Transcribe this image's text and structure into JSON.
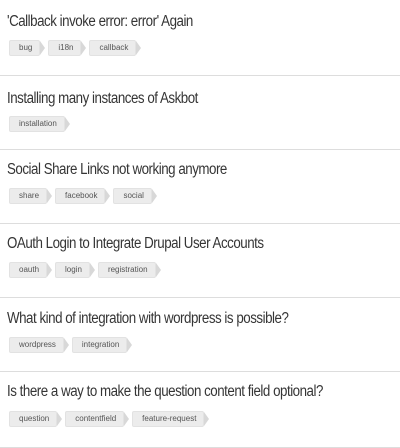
{
  "questions": [
    {
      "title": "'Callback invoke error: error' Again",
      "tags": [
        "bug",
        "i18n",
        "callback"
      ]
    },
    {
      "title": "Installing many instances of Askbot",
      "tags": [
        "installation"
      ]
    },
    {
      "title": "Social Share Links not working anymore",
      "tags": [
        "share",
        "facebook",
        "social"
      ]
    },
    {
      "title": "OAuth Login to Integrate Drupal User Accounts",
      "tags": [
        "oauth",
        "login",
        "registration"
      ]
    },
    {
      "title": "What kind of integration with wordpress is possible?",
      "tags": [
        "wordpress",
        "integration"
      ]
    },
    {
      "title": "Is there a way to make the question content field optional?",
      "tags": [
        "question",
        "contentfield",
        "feature-request"
      ]
    }
  ]
}
